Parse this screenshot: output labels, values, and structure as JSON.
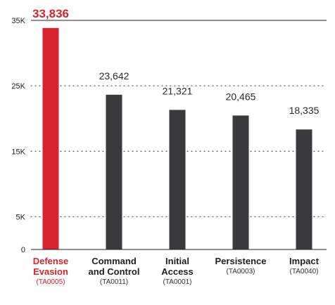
{
  "chart_data": {
    "type": "bar",
    "title": "",
    "xlabel": "",
    "ylabel": "",
    "ylim": [
      0,
      35000
    ],
    "grid": true,
    "y_ticks": [
      {
        "value": 0,
        "label": "0"
      },
      {
        "value": 5000,
        "label": "5K"
      },
      {
        "value": 15000,
        "label": "15K"
      },
      {
        "value": 25000,
        "label": "25K"
      },
      {
        "value": 35000,
        "label": "35K"
      }
    ],
    "categories": [
      {
        "name_lines": [
          "Defense",
          "Evasion"
        ],
        "code": "(TA0005)"
      },
      {
        "name_lines": [
          "Command",
          "and Control"
        ],
        "code": "(TA0011)"
      },
      {
        "name_lines": [
          "Initial",
          "Access"
        ],
        "code": "(TA0001)"
      },
      {
        "name_lines": [
          "Persistence"
        ],
        "code": "(TA0003)"
      },
      {
        "name_lines": [
          "Impact"
        ],
        "code": "(TA0040)"
      }
    ],
    "values": [
      33836,
      23642,
      21321,
      20465,
      18335
    ],
    "value_labels": [
      "33,836",
      "23,642",
      "21,321",
      "20,465",
      "18,335"
    ],
    "highlight_index": 0,
    "colors": {
      "highlight": "#d7232d",
      "bar": "#3a3a3c",
      "grid": "#555555",
      "axis": "#222222"
    }
  }
}
